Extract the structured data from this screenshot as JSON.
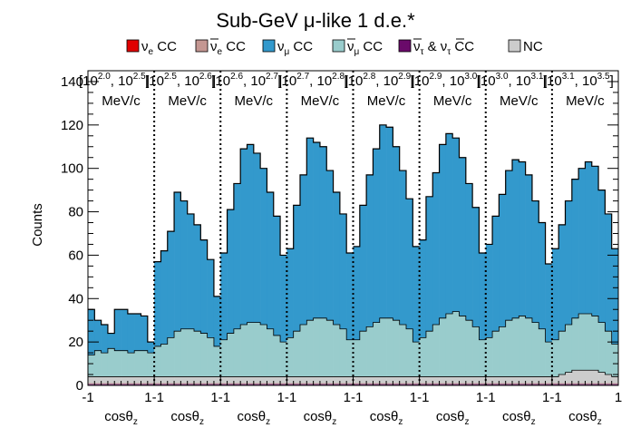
{
  "chart_data": {
    "type": "bar",
    "stacked": true,
    "title_parts": [
      "Sub-GeV ",
      "μ",
      "-like 1 d.e.*"
    ],
    "ylabel": "Counts",
    "ylim": [
      0,
      145
    ],
    "y_ticks": [
      "0",
      "20",
      "40",
      "60",
      "80",
      "100",
      "120",
      "140"
    ],
    "y_tick_values": [
      0,
      20,
      40,
      60,
      80,
      100,
      120,
      140
    ],
    "grid": false,
    "legend_position": "top",
    "legend": [
      {
        "main": "ν",
        "sub": "e",
        "suffix": " CC",
        "bar": false,
        "color": "#e00000"
      },
      {
        "main": "ν",
        "sub": "e",
        "suffix": " CC",
        "bar": true,
        "color": "#c49792"
      },
      {
        "main": "ν",
        "sub": "μ",
        "suffix": " CC",
        "bar": false,
        "color": "#3399cc"
      },
      {
        "main": "ν",
        "sub": "μ",
        "suffix": " CC",
        "bar": true,
        "color": "#99cccc"
      },
      {
        "main": "ν",
        "sub": "τ",
        "suffix": " & ",
        "main2": "ν",
        "sub2": "τ",
        "suffix2": " CC",
        "bar": true,
        "color": "#6a0a6a"
      },
      {
        "main": "NC",
        "sub": "",
        "suffix": "",
        "bar": false,
        "color": "#cccccc"
      }
    ],
    "panels": [
      {
        "range_text": "[10",
        "exp1": "2.0",
        "mid": ", 10",
        "exp2": "2.5",
        "end": "]",
        "unit": "MeV/c",
        "nc": [
          4,
          4,
          4,
          4,
          4,
          4,
          4,
          4,
          4,
          4
        ],
        "numu_bar": [
          10,
          12,
          11,
          13,
          12,
          12,
          11,
          12,
          12,
          11
        ],
        "numu": [
          21,
          14,
          13,
          7,
          19,
          19,
          18,
          17,
          16,
          5
        ]
      },
      {
        "range_text": "[10",
        "exp1": "2.5",
        "mid": ", 10",
        "exp2": "2.6",
        "end": "]",
        "unit": "MeV/c",
        "nc": [
          4,
          4,
          4,
          4,
          4,
          4,
          4,
          4,
          4,
          4
        ],
        "numu_bar": [
          14,
          15,
          18,
          21,
          22,
          22,
          21,
          20,
          18,
          14
        ],
        "numu": [
          39,
          43,
          49,
          64,
          59,
          53,
          49,
          43,
          36,
          23
        ]
      },
      {
        "range_text": "[10",
        "exp1": "2.6",
        "mid": ", 10",
        "exp2": "2.7",
        "end": "]",
        "unit": "MeV/c",
        "nc": [
          4,
          4,
          4,
          4,
          4,
          4,
          4,
          4,
          4,
          4
        ],
        "numu_bar": [
          17,
          20,
          22,
          24,
          25,
          25,
          24,
          22,
          19,
          16
        ],
        "numu": [
          40,
          57,
          67,
          81,
          82,
          78,
          72,
          63,
          55,
          40
        ]
      },
      {
        "range_text": "[10",
        "exp1": "2.7",
        "mid": ", 10",
        "exp2": "2.8",
        "end": "]",
        "unit": "MeV/c",
        "nc": [
          4,
          4,
          4,
          4,
          4,
          4,
          4,
          4,
          4,
          4
        ],
        "numu_bar": [
          18,
          21,
          24,
          26,
          27,
          27,
          26,
          24,
          22,
          17
        ],
        "numu": [
          41,
          58,
          69,
          84,
          81,
          79,
          69,
          61,
          53,
          40
        ]
      },
      {
        "range_text": "[10",
        "exp1": "2.8",
        "mid": ", 10",
        "exp2": "2.9",
        "end": "]",
        "unit": "MeV/c",
        "nc": [
          4,
          4,
          4,
          4,
          4,
          4,
          4,
          4,
          4,
          4
        ],
        "numu_bar": [
          17,
          21,
          23,
          25,
          27,
          27,
          26,
          24,
          22,
          16
        ],
        "numu": [
          43,
          58,
          70,
          80,
          89,
          88,
          80,
          71,
          60,
          44
        ]
      },
      {
        "range_text": "[10",
        "exp1": "2.9",
        "mid": ", 10",
        "exp2": "3.0",
        "end": "]",
        "unit": "MeV/c",
        "nc": [
          4,
          4,
          4,
          4,
          4,
          4,
          4,
          4,
          4,
          4
        ],
        "numu_bar": [
          18,
          21,
          24,
          27,
          29,
          30,
          28,
          26,
          23,
          17
        ],
        "numu": [
          45,
          62,
          70,
          80,
          83,
          80,
          73,
          63,
          55,
          40
        ]
      },
      {
        "range_text": "[10",
        "exp1": "3.0",
        "mid": ", 10",
        "exp2": "3.1",
        "end": "]",
        "unit": "MeV/c",
        "nc": [
          4,
          4,
          4,
          4,
          4,
          4,
          4,
          4,
          4,
          4
        ],
        "numu_bar": [
          18,
          21,
          23,
          26,
          27,
          28,
          27,
          25,
          22,
          16
        ],
        "numu": [
          43,
          53,
          61,
          69,
          73,
          71,
          66,
          56,
          49,
          36
        ]
      },
      {
        "range_text": "[10",
        "exp1": "3.1",
        "mid": ", 10",
        "exp2": "3.5",
        "end": "]",
        "unit": "MeV/c",
        "nc": [
          4,
          5,
          6,
          7,
          7,
          7,
          7,
          6,
          5,
          4
        ],
        "numu_bar": [
          17,
          20,
          22,
          24,
          26,
          26,
          25,
          23,
          20,
          15
        ],
        "numu": [
          42,
          49,
          57,
          64,
          67,
          70,
          69,
          61,
          54,
          44
        ]
      }
    ],
    "x_tick_left": "-1",
    "x_tick_mid": "1-1",
    "x_tick_right": "1",
    "xlabel_main": "cosθ",
    "xlabel_sub": "z"
  }
}
